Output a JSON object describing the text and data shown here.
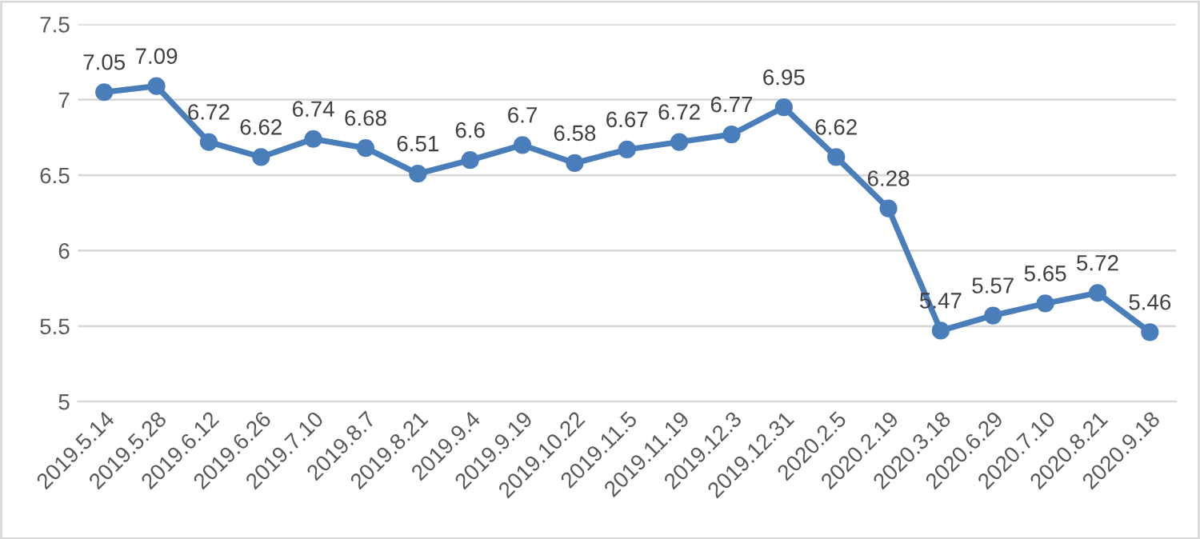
{
  "chart_data": {
    "type": "line",
    "categories": [
      "2019.5.14",
      "2019.5.28",
      "2019.6.12",
      "2019.6.26",
      "2019.7.10",
      "2019.8.7",
      "2019.8.21",
      "2019.9.4",
      "2019.9.19",
      "2019.10.22",
      "2019.11.5",
      "2019.11.19",
      "2019.12.3",
      "2019.12.31",
      "2020.2.5",
      "2020.2.19",
      "2020.3.18",
      "2020.6.29",
      "2020.7.10",
      "2020.8.21",
      "2020.9.18"
    ],
    "series": [
      {
        "color": "#4a7ebb",
        "values": [
          7.05,
          7.09,
          6.72,
          6.62,
          6.74,
          6.68,
          6.51,
          6.6,
          6.7,
          6.58,
          6.67,
          6.72,
          6.77,
          6.95,
          6.62,
          6.28,
          5.47,
          5.57,
          5.65,
          5.72,
          5.46
        ]
      }
    ],
    "ylim": [
      5,
      7.5
    ],
    "yticks": [
      5,
      5.5,
      6,
      6.5,
      7,
      7.5
    ],
    "grid": "y",
    "marker": "circle",
    "line_style": "solid",
    "data_labels": true
  }
}
